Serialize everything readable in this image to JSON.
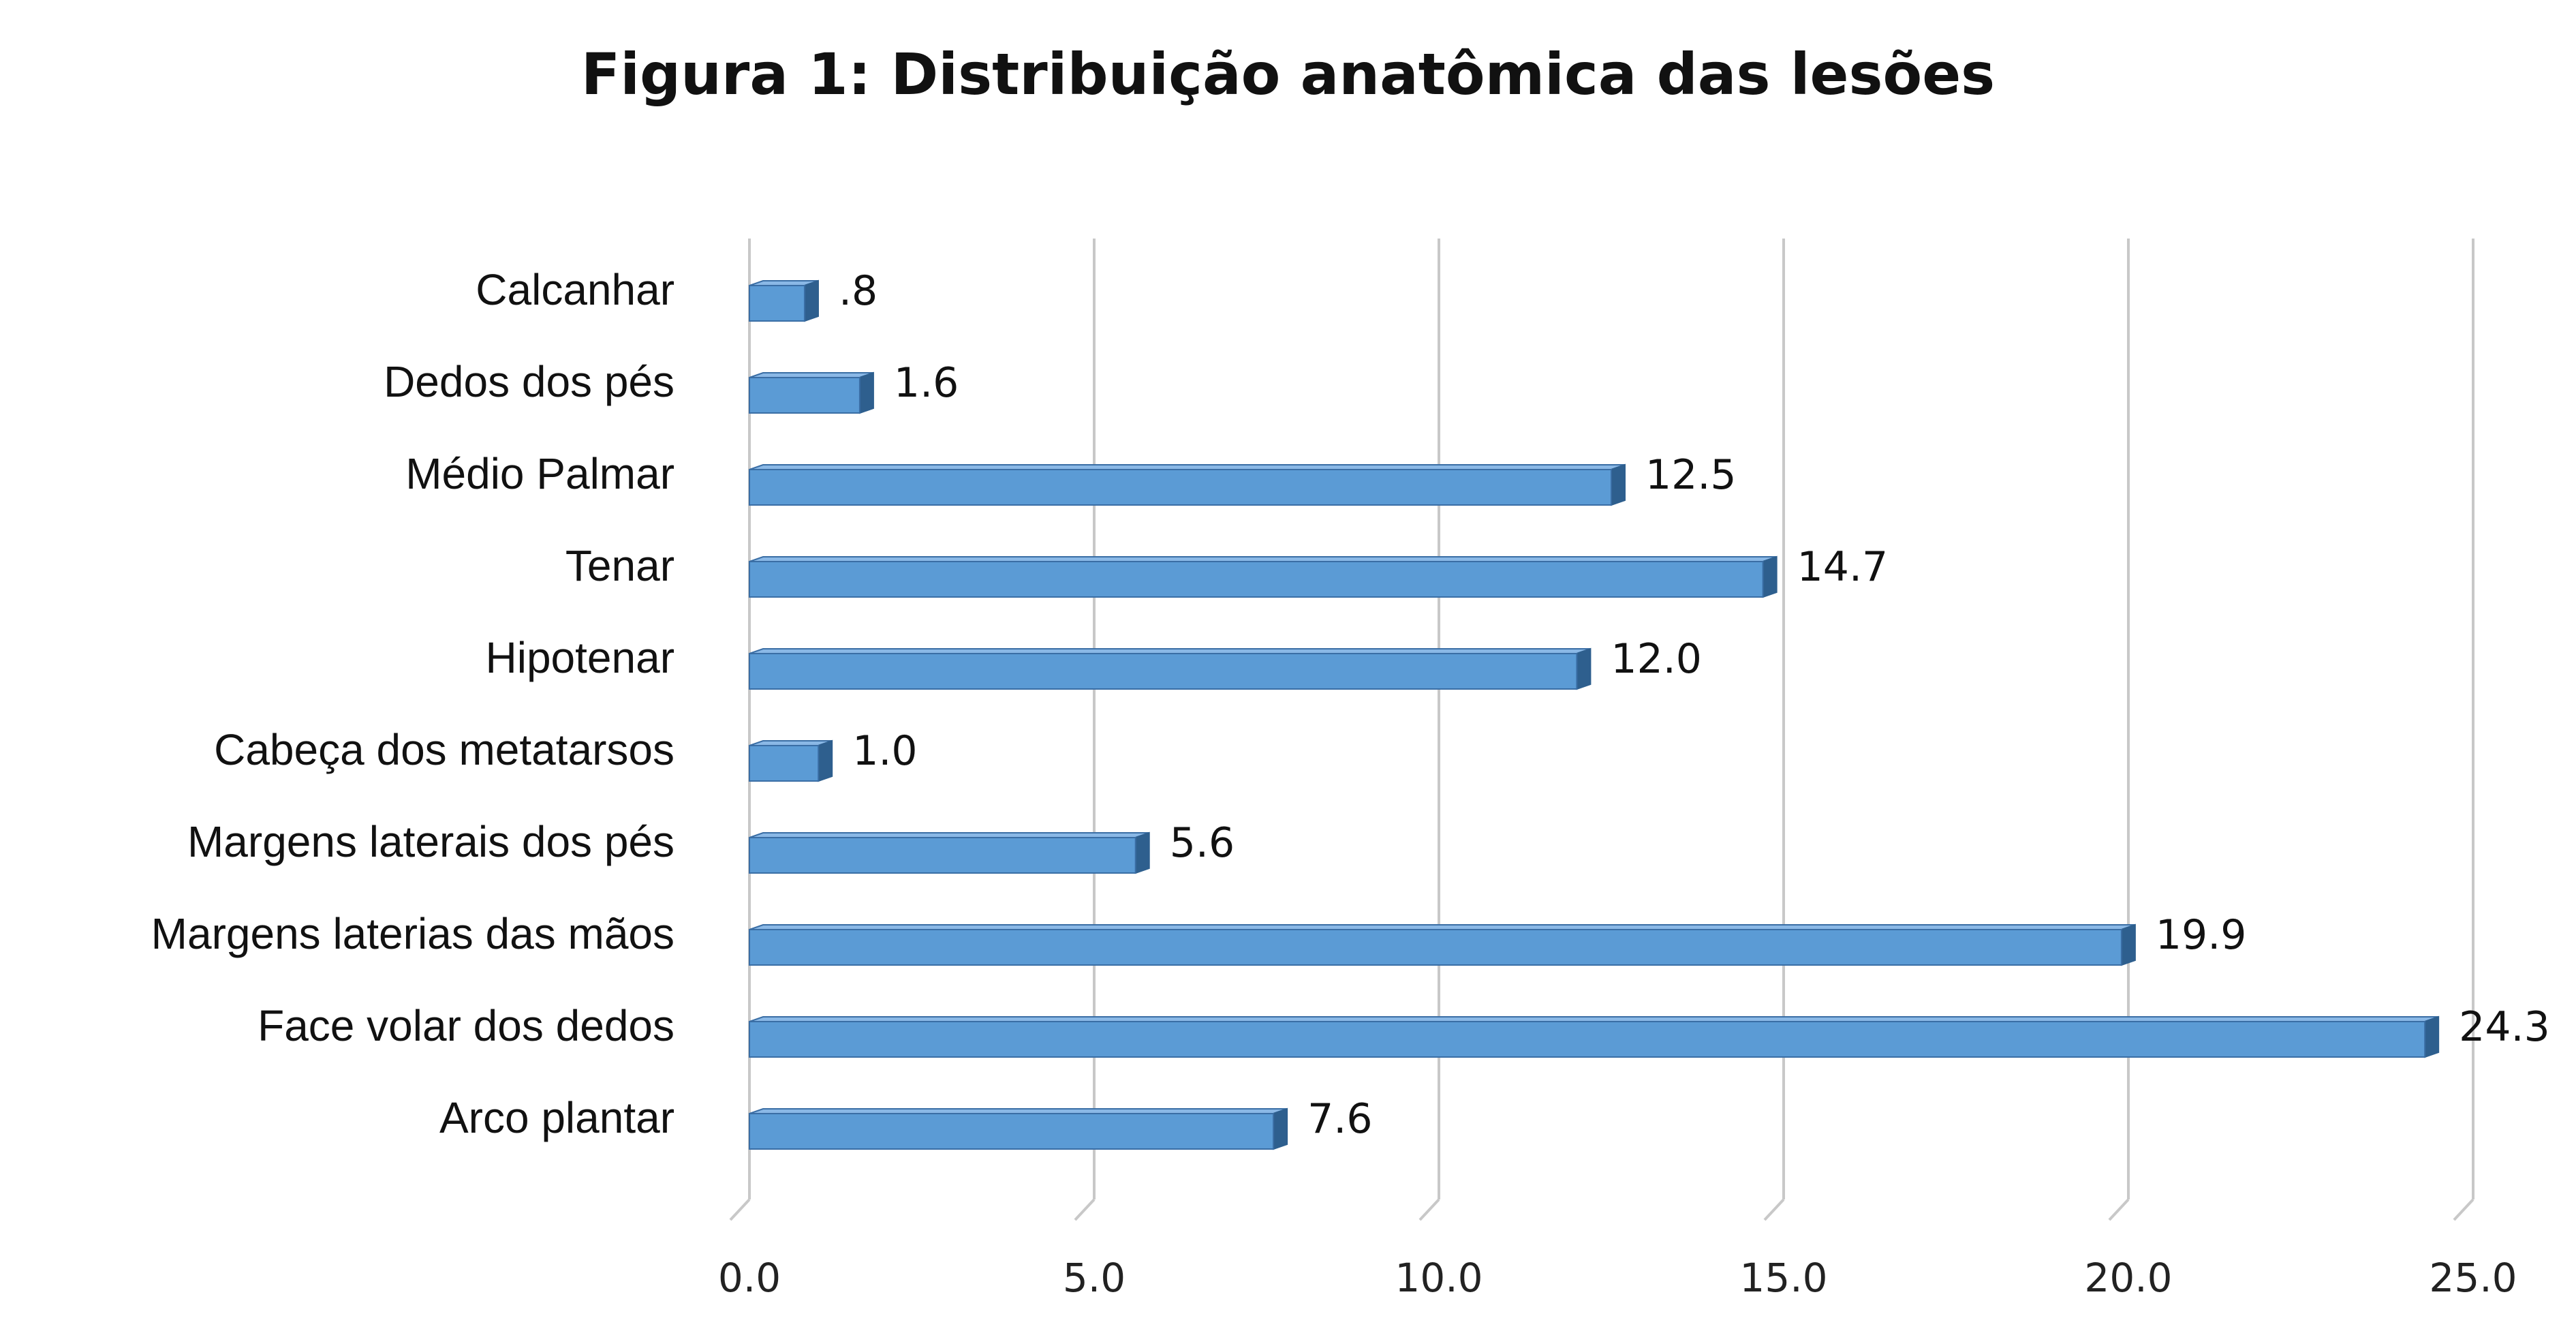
{
  "chart_data": {
    "type": "bar",
    "orientation": "horizontal",
    "title": "Figura 1: Distribuição anatômica das lesões",
    "categories": [
      "Calcanhar",
      "Dedos dos pés",
      "Médio Palmar",
      "Tenar",
      "Hipotenar",
      "Cabeça dos metatarsos",
      "Margens laterais dos pés",
      "Margens laterias das mãos",
      "Face volar dos dedos",
      "Arco plantar"
    ],
    "values": [
      0.8,
      1.6,
      12.5,
      14.7,
      12.0,
      1.0,
      5.6,
      19.9,
      24.3,
      7.6
    ],
    "data_labels": [
      ".8",
      "1.6",
      "12.5",
      "14.7",
      "12.0",
      "1.0",
      "5.6",
      "19.9",
      "24.3",
      "7.6"
    ],
    "xlim": [
      0,
      25
    ],
    "x_ticks": [
      0,
      5,
      10,
      15,
      20,
      25
    ],
    "x_tick_labels": [
      "0.0",
      "5.0",
      "10.0",
      "15.0",
      "20.0",
      "25.0"
    ],
    "xlabel": "",
    "ylabel": "",
    "grid": "vertical",
    "legend": "none",
    "colors": {
      "bar_face": "#5b9bd5",
      "bar_top": "#8ab8e6",
      "bar_side": "#2e5f8e",
      "bar_edge": "#3a6ea5",
      "grid": "#c8c8c8"
    }
  }
}
